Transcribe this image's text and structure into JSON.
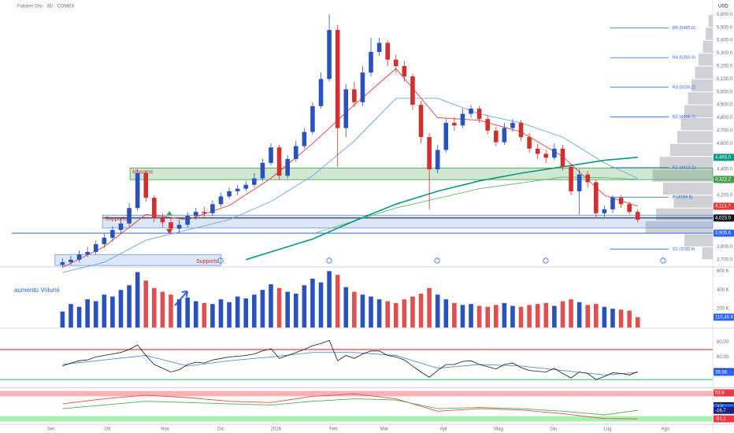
{
  "header": {
    "title": "Futures Oro · 3D · COMEX",
    "currency": "USD"
  },
  "chart_data": [
    {
      "type": "candlestick",
      "open": [
        3660,
        3680,
        3700,
        3740,
        3760,
        3820,
        3870,
        3930,
        3980,
        4100,
        4370,
        4180,
        4020,
        3990,
        3940,
        3970,
        4040,
        4070,
        4060,
        4130,
        4190,
        4230,
        4250,
        4280,
        4330,
        4450,
        4570,
        4350,
        4480,
        4580,
        4690,
        4890,
        5100,
        5480,
        4720,
        5020,
        4920,
        5150,
        5310,
        5380,
        5250,
        5200,
        5120,
        4900,
        4650,
        4400,
        4550,
        4760,
        4740,
        4830,
        4870,
        4790,
        4700,
        4610,
        4720,
        4760,
        4650,
        4560,
        4520,
        4490,
        4560,
        4420,
        4230,
        4360,
        4300,
        4060,
        4090,
        4180,
        4130,
        4070
      ],
      "high": [
        3710,
        3730,
        3770,
        3800,
        3850,
        3900,
        3960,
        4020,
        4140,
        4400,
        4390,
        4200,
        4060,
        4020,
        4010,
        4070,
        4100,
        4110,
        4160,
        4220,
        4260,
        4280,
        4310,
        4370,
        4480,
        4600,
        4590,
        4510,
        4620,
        4720,
        4920,
        5150,
        5600,
        5520,
        5060,
        5080,
        5200,
        5420,
        5420,
        5400,
        5290,
        5240,
        5140,
        4930,
        4680,
        4590,
        4790,
        4800,
        4870,
        4900,
        4890,
        4820,
        4730,
        4760,
        4790,
        4780,
        4680,
        4600,
        4550,
        4600,
        4590,
        4440,
        4400,
        4390,
        4320,
        4120,
        4200,
        4200,
        4150,
        4090
      ],
      "low": [
        3640,
        3660,
        3680,
        3720,
        3740,
        3790,
        3840,
        3900,
        3960,
        4080,
        4150,
        3990,
        3950,
        3900,
        3910,
        3950,
        4010,
        4030,
        4040,
        4110,
        4170,
        4200,
        4230,
        4260,
        4310,
        4430,
        4320,
        4330,
        4460,
        4560,
        4670,
        4870,
        5080,
        4420,
        4650,
        4880,
        4890,
        5120,
        5280,
        5200,
        5150,
        5080,
        4860,
        4600,
        4090,
        4370,
        4530,
        4700,
        4720,
        4800,
        4760,
        4670,
        4580,
        4590,
        4690,
        4620,
        4530,
        4480,
        4450,
        4470,
        4390,
        4200,
        4050,
        4260,
        4030,
        4030,
        4060,
        4100,
        4050,
        3990
      ],
      "close": [
        3680,
        3700,
        3740,
        3760,
        3820,
        3870,
        3930,
        3980,
        4100,
        4370,
        4180,
        4020,
        3990,
        3940,
        3970,
        4040,
        4070,
        4060,
        4130,
        4190,
        4230,
        4250,
        4280,
        4330,
        4450,
        4570,
        4350,
        4480,
        4580,
        4690,
        4890,
        5100,
        5480,
        4720,
        5020,
        4920,
        5150,
        5310,
        5380,
        5250,
        5200,
        5120,
        4900,
        4650,
        4400,
        4550,
        4760,
        4740,
        4830,
        4870,
        4790,
        4700,
        4610,
        4720,
        4760,
        4650,
        4560,
        4520,
        4490,
        4560,
        4420,
        4230,
        4360,
        4300,
        4060,
        4090,
        4180,
        4130,
        4070,
        4010
      ],
      "up_color": "#2a52be",
      "down_color": "#d32f2f",
      "xlim": [
        -7.5,
        78
      ],
      "xticks": [
        {
          "value": -1.4,
          "label": "Set"
        },
        {
          "value": 5.4,
          "label": "Ott"
        },
        {
          "value": 12.3,
          "label": "Nov"
        },
        {
          "value": 19,
          "label": "Dic"
        },
        {
          "value": 25.6,
          "label": "2026"
        },
        {
          "value": 32.5,
          "label": "Feb"
        },
        {
          "value": 38.6,
          "label": "Mar"
        },
        {
          "value": 45.7,
          "label": "Apr"
        },
        {
          "value": 52.3,
          "label": "Mag"
        },
        {
          "value": 58.9,
          "label": "Giu"
        },
        {
          "value": 65.4,
          "label": "Lug"
        },
        {
          "value": 72.3,
          "label": "Ago"
        }
      ],
      "ylim": [
        3650,
        5700
      ],
      "yticks": [
        {
          "value": 3700,
          "label": "3,700.0"
        },
        {
          "value": 3800,
          "label": "3,800.0"
        },
        {
          "value": 3900,
          "label": "3,900.0"
        },
        {
          "value": 4000,
          "label": "4,000.0"
        },
        {
          "value": 4100,
          "label": "4,100.0"
        },
        {
          "value": 4200,
          "label": "4,200.0"
        },
        {
          "value": 4300,
          "label": "4,300.0"
        },
        {
          "value": 4400,
          "label": "4,400.0"
        },
        {
          "value": 4500,
          "label": "4,500.0"
        },
        {
          "value": 4600,
          "label": "4,600.0"
        },
        {
          "value": 4700,
          "label": "4,700.0"
        },
        {
          "value": 4800,
          "label": "4,800.0"
        },
        {
          "value": 4900,
          "label": "4,900.0"
        },
        {
          "value": 5000,
          "label": "5,000.0"
        },
        {
          "value": 5100,
          "label": "5,100.0"
        },
        {
          "value": 5200,
          "label": "5,200.0"
        },
        {
          "value": 5300,
          "label": "5,300.0"
        },
        {
          "value": 5400,
          "label": "5,400.0"
        },
        {
          "value": 5500,
          "label": "5,500.0"
        },
        {
          "value": 5600,
          "label": "5,600.0"
        }
      ],
      "volume_profile": {
        "bins": [
          3700,
          3800,
          3900,
          4000,
          4100,
          4200,
          4300,
          4400,
          4500,
          4600,
          4700,
          4800,
          4900,
          5000,
          5100,
          5200,
          5300,
          5400,
          5500,
          5600
        ],
        "counts": [
          15,
          40,
          95,
          80,
          55,
          70,
          85,
          75,
          60,
          50,
          45,
          40,
          35,
          30,
          25,
          20,
          14,
          10,
          6
        ],
        "xlim": [
          0,
          100
        ],
        "color": "#cfd1d6"
      },
      "zones": [
        {
          "label": "Massimi",
          "from": 4320,
          "to": 4410,
          "x0": 8.1,
          "color": "#43a047"
        },
        {
          "label": "Supporto 1",
          "from": 3945,
          "to": 4045,
          "x0": 4.8,
          "color": "#6f9be0"
        },
        {
          "label": "Supporto",
          "from": 3655,
          "to": 3740,
          "x0": -0.9,
          "x1": 19,
          "color": "#6f9be0"
        }
      ],
      "zone_label_color": "#d32f2f",
      "lines": [
        {
          "color": "#e53935",
          "x": [
            0,
            5,
            10,
            15,
            20,
            25,
            30,
            35,
            40,
            45,
            50,
            55,
            60,
            65,
            69
          ],
          "values": [
            3640,
            3800,
            4050,
            4010,
            4120,
            4330,
            4600,
            4900,
            5180,
            4800,
            4780,
            4690,
            4500,
            4200,
            4113.7
          ]
        },
        {
          "color": "#64a6e8",
          "x": [
            0,
            5,
            10,
            15,
            20,
            25,
            30,
            35,
            40,
            45,
            50,
            55,
            60,
            65,
            69
          ],
          "values": [
            3600,
            3680,
            3850,
            3930,
            4010,
            4150,
            4350,
            4620,
            4950,
            4950,
            4830,
            4760,
            4650,
            4450,
            4330
          ]
        },
        {
          "color": "#66bb6a",
          "x": [
            30,
            40,
            50,
            60,
            65,
            69
          ],
          "values": [
            3900,
            4100,
            4250,
            4340,
            4335,
            4322.2
          ]
        },
        {
          "color": "#089981",
          "x": [
            22,
            30,
            35,
            40,
            45,
            50,
            55,
            60,
            65,
            69
          ],
          "values": [
            3700,
            3860,
            4000,
            4130,
            4230,
            4310,
            4370,
            4420,
            4470,
            4493.0
          ]
        }
      ],
      "levels": [
        {
          "value": 4023.0,
          "x0": 4.8,
          "color": "#131722"
        },
        {
          "value": 3905.6,
          "x0": -6.1,
          "color": "#2962ff"
        }
      ],
      "pivot_range": [
        65.7,
        72.7
      ],
      "pivot_color": "#2962ff",
      "pivots": [
        {
          "value": 5495.0,
          "label": "R5 (5495.0)"
        },
        {
          "value": 5265.4,
          "label": "R4 (5265.4)"
        },
        {
          "value": 5036.2,
          "label": "R3 (5036.2)"
        },
        {
          "value": 4806.7,
          "label": "R2 (4806.7)"
        },
        {
          "value": 4413.2,
          "label": "R1 (4413.2)"
        },
        {
          "value": 4184.8,
          "label": "P (4184.8)"
        },
        {
          "value": 3782.4,
          "label": "S1 (3782.4)"
        }
      ],
      "badges": [
        {
          "value": 4493.0,
          "label": "4,493.0",
          "color": "#089981"
        },
        {
          "value": 4322.2,
          "label": "4,322.2",
          "color": "#43a047"
        },
        {
          "value": 4113.7,
          "label": "4,113.7",
          "color": "#e53935"
        },
        {
          "value": 4023.0,
          "label": "4,023.0",
          "color": "#131722"
        },
        {
          "value": 3905.6,
          "label": "3,905.6",
          "color": "#2962ff"
        }
      ]
    },
    {
      "type": "bar",
      "title": "aumento Volumi",
      "title_color": "#2962ff",
      "values": [
        170000,
        250000,
        220000,
        300000,
        280000,
        350000,
        330000,
        400000,
        450000,
        590000,
        500000,
        420000,
        380000,
        350000,
        300000,
        320000,
        280000,
        260000,
        250000,
        300000,
        270000,
        330000,
        310000,
        350000,
        400000,
        460000,
        420000,
        380000,
        360000,
        450000,
        520000,
        480000,
        600000,
        560000,
        430000,
        380000,
        350000,
        330000,
        300000,
        280000,
        260000,
        300000,
        330000,
        360000,
        420000,
        350000,
        300000,
        260000,
        240000,
        250000,
        230000,
        220000,
        240000,
        260000,
        230000,
        220000,
        240000,
        250000,
        260000,
        230000,
        280000,
        300000,
        270000,
        240000,
        250000,
        220000,
        200000,
        190000,
        180000,
        110450
      ],
      "up_color": "#2a52be",
      "down_color": "#e05050",
      "ylim": [
        0,
        620000
      ],
      "yticks": [
        {
          "value": 200000,
          "label": "200 K"
        },
        {
          "value": 400000,
          "label": "400 K"
        },
        {
          "value": 600000,
          "label": "600 K"
        }
      ],
      "badges": [
        {
          "value": 110450,
          "label": "110,45 K",
          "color": "#2962ff"
        }
      ]
    },
    {
      "type": "line",
      "color": "#131722",
      "values": [
        48,
        52,
        55,
        56,
        60,
        62,
        64,
        66,
        70,
        76,
        62,
        50,
        45,
        40,
        43,
        50,
        53,
        52,
        56,
        58,
        60,
        61,
        62,
        64,
        68,
        71,
        58,
        62,
        66,
        70,
        75,
        78,
        82,
        55,
        62,
        58,
        64,
        68,
        68,
        62,
        60,
        56,
        48,
        40,
        33,
        42,
        50,
        50,
        54,
        55,
        50,
        47,
        44,
        50,
        52,
        46,
        42,
        41,
        40,
        45,
        38,
        32,
        40,
        38,
        30,
        34,
        39,
        38,
        36,
        40.44
      ],
      "series": [
        {
          "color": "#5b8bd9",
          "x": [
            0,
            5,
            10,
            15,
            20,
            25,
            30,
            35,
            40,
            45,
            50,
            55,
            60,
            65,
            69
          ],
          "values": [
            50,
            56,
            62,
            48,
            55,
            60,
            66,
            66,
            62,
            45,
            50,
            48,
            42,
            36,
            39.56
          ]
        }
      ],
      "ylim": [
        20,
        95
      ],
      "yticks": [
        {
          "value": 80,
          "label": "80,00"
        },
        {
          "value": 60,
          "label": "60,00"
        }
      ],
      "bands": [
        {
          "from": 69.6,
          "to": 70.4,
          "color": "#d50000"
        },
        {
          "from": 29.6,
          "to": 30.4,
          "color": "#00c853"
        }
      ],
      "badges": [
        {
          "value": 40.44,
          "label": "40,44",
          "color": "#131722"
        },
        {
          "value": 39.56,
          "label": "39,56",
          "color": "#2962ff"
        }
      ]
    },
    {
      "type": "line",
      "series": [
        {
          "color": "#e05050",
          "x": [
            0,
            5,
            10,
            15,
            20,
            25,
            30,
            35,
            40,
            45,
            50,
            55,
            60,
            65,
            69
          ],
          "values": [
            10,
            30,
            45,
            35,
            20,
            15,
            40,
            50,
            30,
            -20,
            -10,
            -15,
            -30,
            -50,
            -51.1
          ]
        },
        {
          "color": "#4caf50",
          "x": [
            0,
            5,
            10,
            15,
            20,
            25,
            30,
            35,
            40,
            45,
            50,
            55,
            60,
            65,
            69
          ],
          "values": [
            -10,
            5,
            20,
            15,
            10,
            5,
            20,
            30,
            25,
            -10,
            -5,
            -10,
            -20,
            -35,
            -16.7
          ]
        }
      ],
      "ylim": [
        -70,
        70
      ],
      "bands": [
        {
          "from": 40,
          "to": 62,
          "color": "#f7a8ad"
        },
        {
          "from": -40,
          "to": -62,
          "color": "#9ef0a8"
        }
      ],
      "badges": [
        {
          "value": 53.9,
          "label": "53,9",
          "color": "#f23645"
        },
        {
          "value": 2.0,
          "label": "2,0",
          "color": "#131722"
        },
        {
          "value": -4.5,
          "label": "-4,5",
          "color": "#2962ff"
        },
        {
          "value": -16.7,
          "label": "-16,7",
          "color": "#1a237e"
        },
        {
          "value": -51.1,
          "label": "-51,1",
          "color": "#f23645"
        }
      ]
    }
  ]
}
